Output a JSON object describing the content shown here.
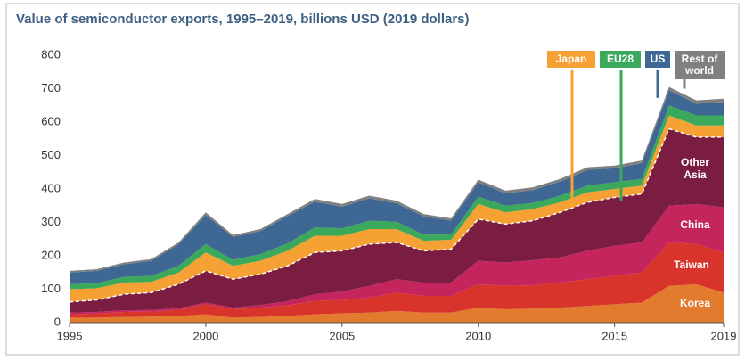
{
  "chart_data": {
    "type": "stacked_area",
    "title": "Value of semiconductor exports, 1995–2019, billions USD (2019 dollars)",
    "x": [
      1995,
      1996,
      1997,
      1998,
      1999,
      2000,
      2001,
      2002,
      2003,
      2004,
      2005,
      2006,
      2007,
      2008,
      2009,
      2010,
      2011,
      2012,
      2013,
      2014,
      2015,
      2016,
      2017,
      2018,
      2019
    ],
    "xlim": [
      1995,
      2019
    ],
    "xticks": [
      1995,
      2000,
      2005,
      2010,
      2015,
      2019
    ],
    "ylim": [
      0,
      800
    ],
    "yticks": [
      0,
      100,
      200,
      300,
      400,
      500,
      600,
      700,
      800
    ],
    "grid": false,
    "series": [
      {
        "name": "Korea",
        "color": "#e37b2f",
        "values": [
          15,
          15,
          17,
          18,
          20,
          25,
          15,
          17,
          20,
          25,
          28,
          30,
          35,
          30,
          30,
          45,
          40,
          42,
          45,
          50,
          55,
          60,
          110,
          115,
          90
        ]
      },
      {
        "name": "Taiwan",
        "color": "#d9342b",
        "values": [
          10,
          12,
          15,
          15,
          18,
          30,
          25,
          28,
          32,
          40,
          40,
          45,
          55,
          50,
          50,
          70,
          70,
          70,
          75,
          80,
          85,
          90,
          130,
          120,
          120
        ]
      },
      {
        "name": "China",
        "color": "#c4255c",
        "values": [
          5,
          5,
          5,
          5,
          5,
          5,
          5,
          8,
          12,
          20,
          25,
          35,
          40,
          40,
          40,
          70,
          70,
          75,
          75,
          85,
          90,
          90,
          110,
          120,
          135
        ]
      },
      {
        "name": "Other Asia",
        "color": "#7a1d40",
        "values": [
          32,
          36,
          48,
          52,
          72,
          95,
          85,
          92,
          106,
          125,
          122,
          125,
          110,
          95,
          100,
          125,
          115,
          118,
          135,
          145,
          145,
          145,
          230,
          200,
          210
        ]
      },
      {
        "name": "Japan",
        "color": "#f5a133",
        "values": [
          38,
          35,
          35,
          32,
          35,
          55,
          40,
          40,
          45,
          50,
          45,
          45,
          40,
          30,
          28,
          45,
          35,
          35,
          30,
          30,
          25,
          25,
          40,
          35,
          35
        ]
      },
      {
        "name": "EU28",
        "color": "#3aa95b",
        "values": [
          15,
          15,
          17,
          18,
          20,
          25,
          18,
          20,
          22,
          25,
          22,
          25,
          22,
          18,
          16,
          22,
          20,
          18,
          20,
          20,
          20,
          20,
          30,
          30,
          30
        ]
      },
      {
        "name": "US",
        "color": "#3e6893",
        "values": [
          35,
          37,
          38,
          45,
          65,
          87,
          68,
          69,
          82,
          77,
          65,
          67,
          55,
          55,
          41,
          43,
          37,
          39,
          42,
          47,
          42,
          47,
          45,
          35,
          40
        ]
      },
      {
        "name": "Rest of world",
        "color": "#808080",
        "values": [
          5,
          5,
          5,
          5,
          5,
          8,
          6,
          6,
          6,
          8,
          8,
          8,
          8,
          7,
          7,
          8,
          8,
          8,
          8,
          8,
          8,
          8,
          10,
          10,
          10
        ]
      }
    ]
  }
}
